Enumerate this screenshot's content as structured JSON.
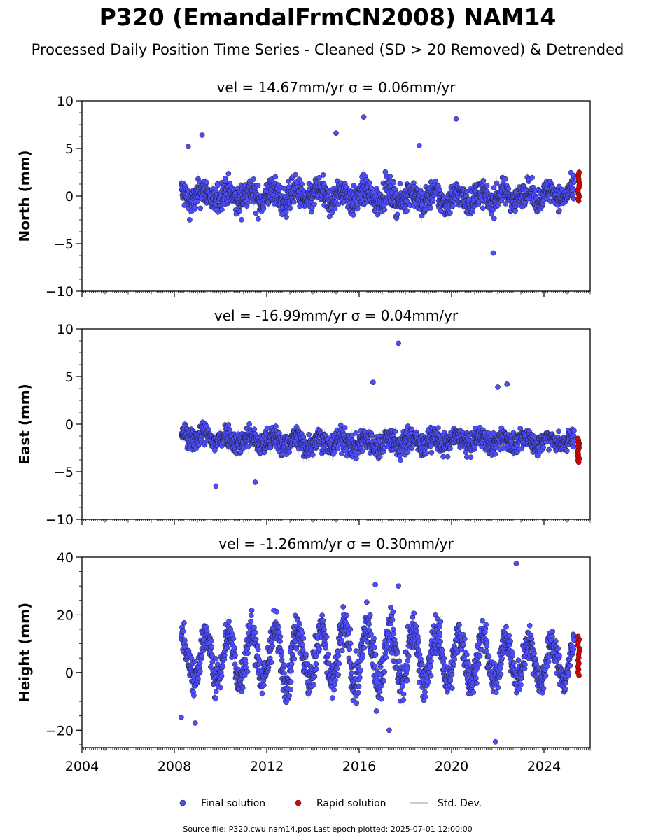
{
  "figure": {
    "title": "P320 (EmandalFrmCN2008) NAM14",
    "subtitle": "Processed Daily Position Time Series - Cleaned (SD > 20 Removed) & Detrended",
    "source_note": "Source file: P320.cwu.nam14.pos  Last epoch plotted: 2025-07-01 12:00:00"
  },
  "legend": {
    "placement": "bottom-center",
    "items": [
      {
        "label": "Final solution",
        "color": "#4d4dff"
      },
      {
        "label": "Rapid solution",
        "color": "#e00000"
      },
      {
        "label": "Std. Dev.",
        "color": "#cccccc"
      }
    ]
  },
  "colors": {
    "final": "#4d4dff",
    "rapid": "#e00000",
    "stddev": "#bbbbbb",
    "edge": "#1a1a1a"
  },
  "chart_data": [
    {
      "type": "scatter",
      "title": "vel = 14.67mm/yr   σ = 0.06mm/yr",
      "ylabel": "North (mm)",
      "xlim": [
        2004,
        2026
      ],
      "ylim": [
        -10,
        10
      ],
      "x_ticks": [
        "2004",
        "2008",
        "2012",
        "2016",
        "2020",
        "2024"
      ],
      "y_ticks": [
        "10",
        "5",
        "0",
        "−10"
      ],
      "y_tick_values": [
        10,
        5,
        0,
        -10
      ],
      "extra_y_ticks": [
        {
          "value": -5,
          "label": "−5"
        }
      ],
      "x_tick_labels_visible": false,
      "final_solution": {
        "x_range": [
          2008.3,
          2025.3
        ],
        "envelope": [
          [
            2008.3,
            -3.5,
            3.5
          ],
          [
            2012,
            -3.5,
            3.5
          ],
          [
            2016,
            -3.5,
            3.5
          ],
          [
            2020,
            -3.5,
            3.0
          ],
          [
            2025.3,
            -2.5,
            3.0
          ]
        ],
        "outliers": [
          [
            2009.2,
            6.4
          ],
          [
            2016.2,
            8.3
          ],
          [
            2020.2,
            8.1
          ],
          [
            2015.0,
            6.6
          ],
          [
            2018.6,
            5.3
          ],
          [
            2021.8,
            -6.0
          ],
          [
            2008.6,
            5.2
          ]
        ]
      },
      "rapid_solution": {
        "x": 2025.5,
        "y_range": [
          -0.5,
          2.5
        ]
      }
    },
    {
      "type": "scatter",
      "title": "vel = -16.99mm/yr   σ = 0.04mm/yr",
      "ylabel": "East (mm)",
      "xlim": [
        2004,
        2026
      ],
      "ylim": [
        -10,
        10
      ],
      "x_ticks": [
        "2004",
        "2008",
        "2012",
        "2016",
        "2020",
        "2024"
      ],
      "y_ticks": [
        "10",
        "5",
        "0",
        "−5",
        "−10"
      ],
      "y_tick_values": [
        10,
        5,
        0,
        -5,
        -10
      ],
      "x_tick_labels_visible": false,
      "final_solution": {
        "x_range": [
          2008.3,
          2025.3
        ],
        "envelope": [
          [
            2008.3,
            -4.0,
            1.5
          ],
          [
            2012,
            -4.5,
            1.0
          ],
          [
            2016,
            -5.0,
            1.0
          ],
          [
            2020,
            -4.5,
            1.0
          ],
          [
            2025.3,
            -4.0,
            0.5
          ]
        ],
        "outliers": [
          [
            2017.7,
            8.5
          ],
          [
            2016.6,
            4.4
          ],
          [
            2022.4,
            4.2
          ],
          [
            2022.0,
            3.9
          ],
          [
            2011.5,
            -6.1
          ],
          [
            2009.8,
            -6.5
          ]
        ]
      },
      "rapid_solution": {
        "x": 2025.5,
        "y_range": [
          -4.0,
          -1.5
        ]
      }
    },
    {
      "type": "scatter",
      "title": "vel = -1.26mm/yr   σ = 0.30mm/yr",
      "ylabel": "Height (mm)",
      "xlim": [
        2004,
        2026
      ],
      "ylim": [
        -26,
        40
      ],
      "x_ticks": [
        "2004",
        "2008",
        "2012",
        "2016",
        "2020",
        "2024"
      ],
      "y_ticks": [
        "40",
        "20",
        "0",
        "−20"
      ],
      "y_tick_values": [
        40,
        20,
        0,
        -20
      ],
      "x_tick_labels_visible": true,
      "final_solution": {
        "x_range": [
          2008.3,
          2025.3
        ],
        "envelope": [
          [
            2008.3,
            -8,
            18
          ],
          [
            2012,
            -10,
            22
          ],
          [
            2016,
            -12,
            24
          ],
          [
            2020,
            -10,
            20
          ],
          [
            2025.3,
            -8,
            15
          ]
        ],
        "outliers": [
          [
            2022.8,
            37.8
          ],
          [
            2021.9,
            -24.0
          ],
          [
            2017.7,
            30.0
          ],
          [
            2016.7,
            30.5
          ],
          [
            2008.3,
            -15.5
          ],
          [
            2008.9,
            -17.5
          ],
          [
            2017.3,
            -20.0
          ]
        ]
      },
      "rapid_solution": {
        "x": 2025.5,
        "y_range": [
          -1,
          12.5
        ]
      }
    }
  ]
}
